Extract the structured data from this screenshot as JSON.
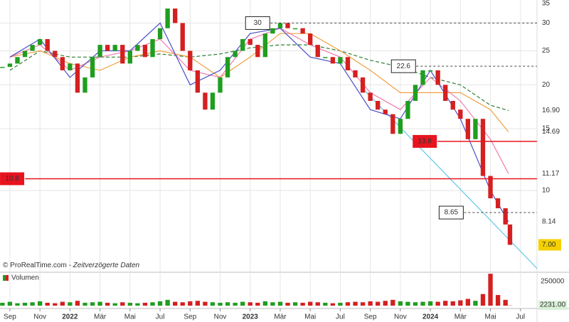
{
  "chart_data": {
    "type": "price",
    "xlim": [
      -0.66,
      35.1
    ],
    "xticks": [
      {
        "value": 0,
        "label": "Sep"
      },
      {
        "value": 2,
        "label": "Nov"
      },
      {
        "value": 4,
        "label": "2022"
      },
      {
        "value": 6,
        "label": "Mär"
      },
      {
        "value": 8,
        "label": "Mai"
      },
      {
        "value": 10,
        "label": "Jul"
      },
      {
        "value": 12,
        "label": "Sep"
      },
      {
        "value": 14,
        "label": "Nov"
      },
      {
        "value": 16,
        "label": "2023"
      },
      {
        "value": 18,
        "label": "Mär"
      },
      {
        "value": 20,
        "label": "Mai"
      },
      {
        "value": 22,
        "label": "Jul"
      },
      {
        "value": 24,
        "label": "Sep"
      },
      {
        "value": 26,
        "label": "Nov"
      },
      {
        "value": 28,
        "label": "2024"
      },
      {
        "value": 30,
        "label": "Mär"
      },
      {
        "value": 32,
        "label": "Mai"
      },
      {
        "value": 34,
        "label": "Jul"
      }
    ],
    "ylim": [
      5.93,
      34.9
    ],
    "yticks": [
      35,
      30,
      25,
      20,
      15,
      10
    ],
    "log_scale": true,
    "grid": true,
    "up_color": "#1f9e1f",
    "down_color": "#d42020",
    "x": [
      -0.5,
      0,
      0.5,
      1,
      1.5,
      2,
      2.5,
      3,
      3.5,
      4,
      4.5,
      5,
      5.5,
      6,
      6.5,
      7,
      7.5,
      8,
      8.5,
      9,
      9.5,
      10,
      10.5,
      11,
      11.5,
      12,
      12.5,
      13,
      13.5,
      14,
      14.5,
      15,
      15.5,
      16,
      16.5,
      17,
      17.5,
      18,
      18.5,
      19,
      19.5,
      20,
      20.5,
      21,
      21.5,
      22,
      22.5,
      23,
      23.5,
      24,
      24.5,
      25,
      25.5,
      26,
      26.5,
      27,
      27.5,
      28,
      28.5,
      29,
      29.5,
      30,
      30.5,
      31,
      31.5,
      32,
      32.5,
      33,
      33.3
    ],
    "values": [
      22.5,
      23,
      24,
      25,
      26,
      27,
      25,
      24,
      22,
      23,
      19,
      21,
      24,
      26,
      25,
      26,
      23,
      25,
      26,
      24,
      27,
      29,
      33,
      30,
      25,
      22,
      19,
      17,
      19,
      21,
      24,
      25,
      27,
      26,
      24,
      28,
      29,
      30,
      29,
      29,
      28,
      26,
      24,
      24,
      23,
      24,
      22,
      21,
      19,
      18,
      17,
      16.5,
      14.5,
      16,
      18,
      20,
      22,
      22,
      20,
      18,
      17,
      16,
      14,
      16,
      11,
      9.5,
      8.9,
      8,
      7
    ],
    "last_label": {
      "value": 7.0,
      "label": "7.00"
    },
    "last_box_color": "#f5d000",
    "series": [
      {
        "color": "#2e7d32",
        "dashed": true,
        "x": [
          0,
          2,
          4,
          6,
          8,
          10,
          12,
          14,
          16,
          18,
          20,
          22,
          24,
          26,
          28,
          30,
          32,
          33.2
        ],
        "values": [
          22,
          25,
          24,
          24,
          24,
          24.5,
          24,
          24.5,
          25.5,
          26,
          26,
          25,
          23.5,
          22.5,
          21,
          20,
          17.5,
          16.9
        ],
        "last_label": {
          "value": 16.9,
          "label": "16.90"
        }
      },
      {
        "color": "#f0a040",
        "dashed": false,
        "x": [
          0,
          2,
          4,
          6,
          8,
          10,
          12,
          14,
          16,
          18,
          20,
          22,
          24,
          26,
          28,
          30,
          32,
          33.2
        ],
        "values": [
          24,
          25,
          23,
          22,
          24,
          25,
          24,
          21,
          24,
          28,
          28,
          25,
          22,
          19,
          19,
          19,
          17,
          14.69
        ],
        "last_label": {
          "value": 14.69,
          "label": "14.69"
        }
      },
      {
        "color": "#f07cb0",
        "dashed": false,
        "x": [
          0,
          2,
          4,
          6,
          8,
          10,
          12,
          14,
          16,
          18,
          20,
          22,
          24,
          26,
          28,
          30,
          32,
          33.2
        ],
        "values": [
          24,
          26,
          22,
          24,
          25,
          27,
          22,
          21,
          27,
          29,
          26,
          24,
          19,
          17,
          21,
          18,
          14,
          11.17
        ],
        "last_label": {
          "value": 11.17,
          "label": "11.17"
        }
      },
      {
        "color": "#4a50c8",
        "dashed": false,
        "x": [
          0,
          2,
          4,
          6,
          8,
          10,
          12,
          14,
          16,
          18,
          20,
          22,
          24,
          26,
          28,
          30,
          32,
          33.2
        ],
        "values": [
          24,
          27,
          21,
          25,
          25,
          30,
          20,
          22,
          28,
          29,
          24,
          23,
          17,
          16,
          22,
          16,
          10,
          8.14
        ],
        "last_label": {
          "value": 8.14,
          "label": "8.14"
        }
      }
    ],
    "levels": [
      {
        "value": 30,
        "from": 17.35,
        "style": "dashed",
        "box": "#ffffff"
      },
      {
        "value": 22.6,
        "from": 27.06,
        "style": "dashed",
        "box": "#ffffff"
      },
      {
        "value": 13.8,
        "from": 28.48,
        "style": "solid",
        "box": "#e8141e"
      },
      {
        "value": 10.8,
        "from": 1.0,
        "style": "solid",
        "box": "#e8141e"
      },
      {
        "value": 8.65,
        "from": 30.24,
        "style": "dashed",
        "box": "#ffffff"
      }
    ],
    "trendline": {
      "x": [
        23.5,
        35.1
      ],
      "values": [
        19.5,
        6.0
      ],
      "color": "#5cc6ea"
    },
    "credit": "© ProRealTime.com",
    "credit_note": "- Zeitverzögerte Daten",
    "volume": {
      "legend": "Volumen",
      "ylim": [
        0,
        331000
      ],
      "yticks": [
        250000
      ],
      "values": [
        30000,
        40000,
        25000,
        30000,
        35000,
        45000,
        30000,
        25000,
        40000,
        35000,
        50000,
        30000,
        35000,
        40000,
        30000,
        25000,
        35000,
        30000,
        25000,
        30000,
        35000,
        45000,
        60000,
        40000,
        35000,
        45000,
        50000,
        40000,
        35000,
        30000,
        35000,
        30000,
        40000,
        35000,
        30000,
        45000,
        35000,
        40000,
        30000,
        35000,
        30000,
        40000,
        35000,
        30000,
        25000,
        30000,
        35000,
        40000,
        35000,
        45000,
        40000,
        50000,
        60000,
        45000,
        40000,
        35000,
        40000,
        45000,
        40000,
        50000,
        45000,
        55000,
        70000,
        50000,
        120000,
        330000,
        110000,
        60000,
        2231
      ],
      "last_label": {
        "value": 2231,
        "label": "2231.00"
      }
    }
  }
}
